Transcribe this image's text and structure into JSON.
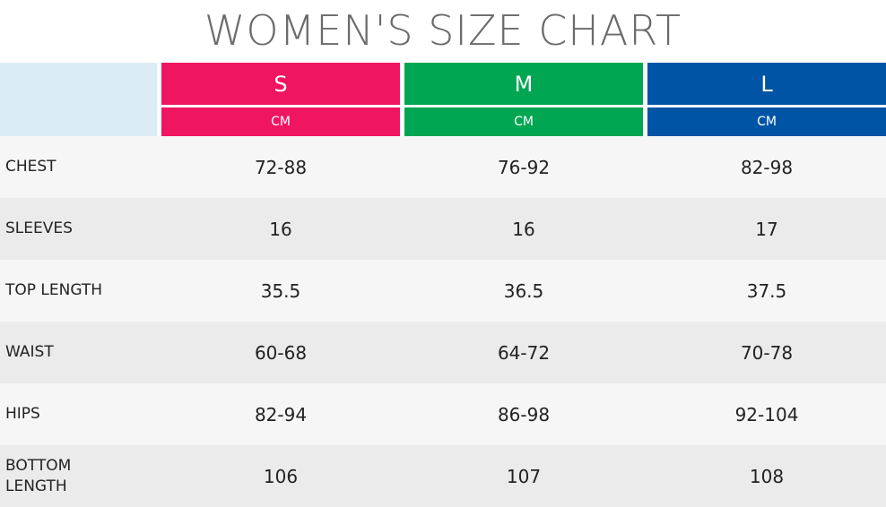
{
  "title": "WOMEN'S SIZE CHART",
  "columns": [
    {
      "size": "S",
      "unit": "CM",
      "color": "#ef1561"
    },
    {
      "size": "M",
      "unit": "CM",
      "color": "#00a651"
    },
    {
      "size": "L",
      "unit": "CM",
      "color": "#0054a6"
    }
  ],
  "rows": [
    {
      "label": "CHEST",
      "values": [
        "72-88",
        "76-92",
        "82-98"
      ]
    },
    {
      "label": "SLEEVES",
      "values": [
        "16",
        "16",
        "17"
      ]
    },
    {
      "label": "TOP LENGTH",
      "values": [
        "35.5",
        "36.5",
        "37.5"
      ]
    },
    {
      "label": "WAIST",
      "values": [
        "60-68",
        "64-72",
        "70-78"
      ]
    },
    {
      "label": "HIPS",
      "values": [
        "82-94",
        "86-98",
        "92-104"
      ]
    },
    {
      "label": "BOTTOM LENGTH",
      "values": [
        "106",
        "107",
        "108"
      ]
    }
  ]
}
